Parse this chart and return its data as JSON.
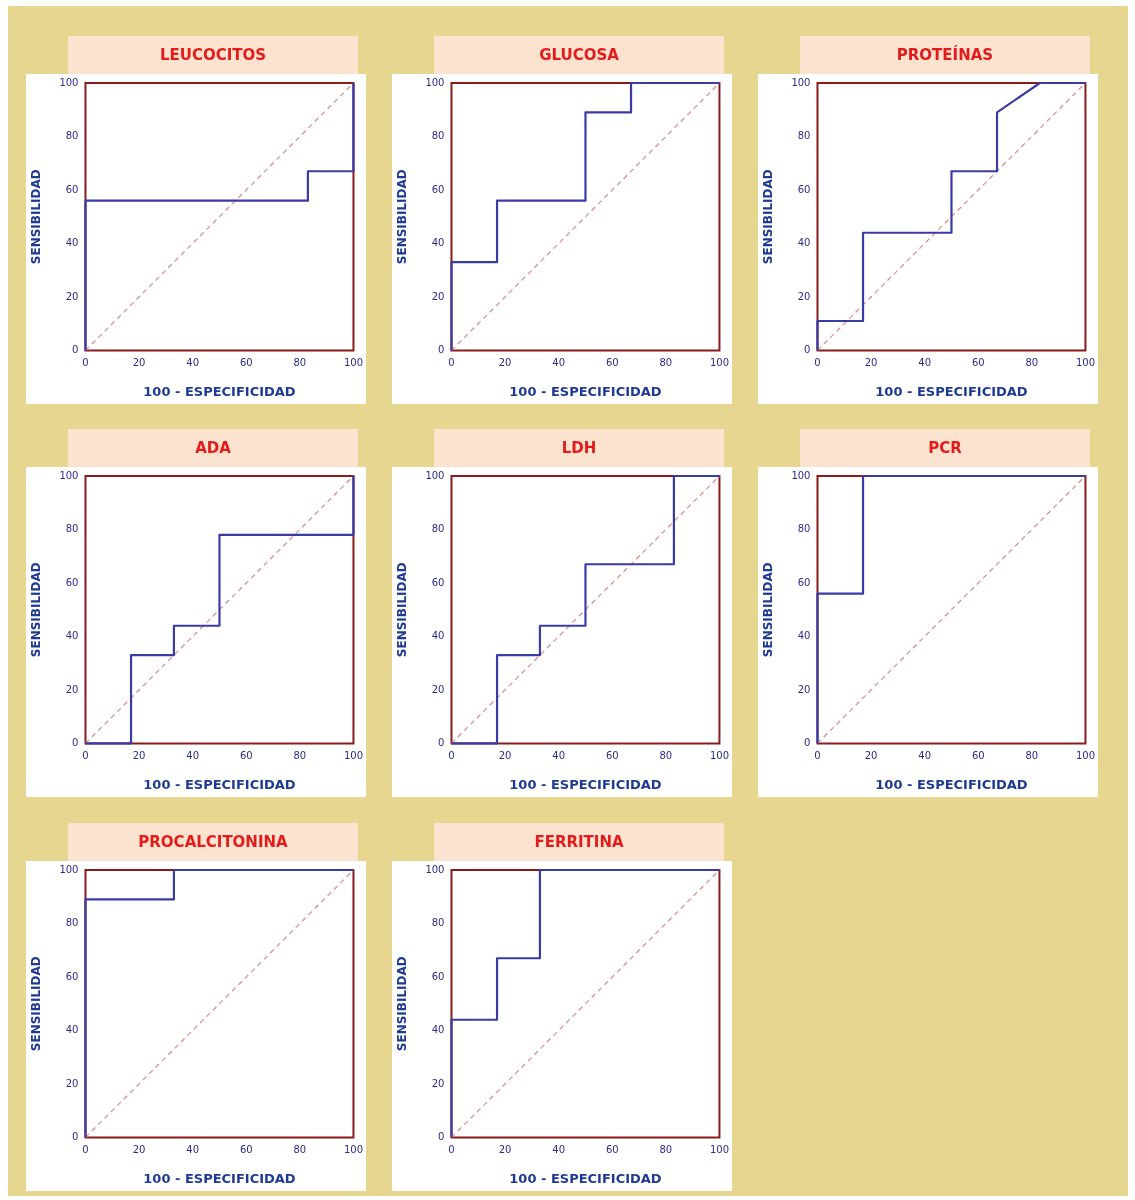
{
  "chart_data": [
    {
      "type": "line",
      "title": "LEUCOCITOS",
      "xlabel": "100 - ESPECIFICIDAD",
      "ylabel": "SENSIBILIDAD",
      "xlim": [
        0,
        100
      ],
      "ylim": [
        0,
        100
      ],
      "xticks": [
        0,
        20,
        40,
        60,
        80,
        100
      ],
      "yticks": [
        0,
        20,
        40,
        60,
        80,
        100
      ],
      "marker": "none",
      "series": [
        {
          "color": "#3b3ba6",
          "line_style": "solid",
          "x": [
            0,
            0,
            83,
            83,
            100,
            100
          ],
          "values": [
            0,
            56,
            56,
            67,
            67,
            100
          ]
        },
        {
          "color": "#d98a8a",
          "line_style": "dashed",
          "x": [
            0,
            100
          ],
          "values": [
            0,
            100
          ]
        }
      ]
    },
    {
      "type": "line",
      "title": "GLUCOSA",
      "xlabel": "100 - ESPECIFICIDAD",
      "ylabel": "SENSIBILIDAD",
      "xlim": [
        0,
        100
      ],
      "ylim": [
        0,
        100
      ],
      "xticks": [
        0,
        20,
        40,
        60,
        80,
        100
      ],
      "yticks": [
        0,
        20,
        40,
        60,
        80,
        100
      ],
      "marker": "none",
      "series": [
        {
          "color": "#3b3ba6",
          "line_style": "solid",
          "x": [
            0,
            0,
            17,
            17,
            50,
            50,
            67,
            67,
            100
          ],
          "values": [
            0,
            33,
            33,
            56,
            56,
            89,
            89,
            100,
            100
          ]
        },
        {
          "color": "#d98a8a",
          "line_style": "dashed",
          "x": [
            0,
            100
          ],
          "values": [
            0,
            100
          ]
        }
      ]
    },
    {
      "type": "line",
      "title": "PROTEÍNAS",
      "xlabel": "100 - ESPECIFICIDAD",
      "ylabel": "SENSIBILIDAD",
      "xlim": [
        0,
        100
      ],
      "ylim": [
        0,
        100
      ],
      "xticks": [
        0,
        20,
        40,
        60,
        80,
        100
      ],
      "yticks": [
        0,
        20,
        40,
        60,
        80,
        100
      ],
      "marker": "none",
      "series": [
        {
          "color": "#3b3ba6",
          "line_style": "solid",
          "x": [
            0,
            0,
            17,
            17,
            50,
            50,
            67,
            67,
            83,
            100
          ],
          "values": [
            0,
            11,
            11,
            44,
            44,
            67,
            67,
            89,
            100,
            100
          ]
        },
        {
          "color": "#d98a8a",
          "line_style": "dashed",
          "x": [
            0,
            100
          ],
          "values": [
            0,
            100
          ]
        }
      ]
    },
    {
      "type": "line",
      "title": "ADA",
      "xlabel": "100 - ESPECIFICIDAD",
      "ylabel": "SENSIBILIDAD",
      "xlim": [
        0,
        100
      ],
      "ylim": [
        0,
        100
      ],
      "xticks": [
        0,
        20,
        40,
        60,
        80,
        100
      ],
      "yticks": [
        0,
        20,
        40,
        60,
        80,
        100
      ],
      "marker": "none",
      "series": [
        {
          "color": "#3b3ba6",
          "line_style": "solid",
          "x": [
            0,
            17,
            17,
            33,
            33,
            50,
            50,
            100,
            100
          ],
          "values": [
            0,
            0,
            33,
            33,
            44,
            44,
            78,
            78,
            100
          ]
        },
        {
          "color": "#d98a8a",
          "line_style": "dashed",
          "x": [
            0,
            100
          ],
          "values": [
            0,
            100
          ]
        }
      ]
    },
    {
      "type": "line",
      "title": "LDH",
      "xlabel": "100 - ESPECIFICIDAD",
      "ylabel": "SENSIBILIDAD",
      "xlim": [
        0,
        100
      ],
      "ylim": [
        0,
        100
      ],
      "xticks": [
        0,
        20,
        40,
        60,
        80,
        100
      ],
      "yticks": [
        0,
        20,
        40,
        60,
        80,
        100
      ],
      "marker": "none",
      "series": [
        {
          "color": "#3b3ba6",
          "line_style": "solid",
          "x": [
            0,
            17,
            17,
            33,
            33,
            50,
            50,
            83,
            83,
            100
          ],
          "values": [
            0,
            0,
            33,
            33,
            44,
            44,
            67,
            67,
            100,
            100
          ]
        },
        {
          "color": "#d98a8a",
          "line_style": "dashed",
          "x": [
            0,
            100
          ],
          "values": [
            0,
            100
          ]
        }
      ]
    },
    {
      "type": "line",
      "title": "PCR",
      "xlabel": "100 - ESPECIFICIDAD",
      "ylabel": "SENSIBILIDAD",
      "xlim": [
        0,
        100
      ],
      "ylim": [
        0,
        100
      ],
      "xticks": [
        0,
        20,
        40,
        60,
        80,
        100
      ],
      "yticks": [
        0,
        20,
        40,
        60,
        80,
        100
      ],
      "marker": "none",
      "series": [
        {
          "color": "#3b3ba6",
          "line_style": "solid",
          "x": [
            0,
            0,
            17,
            17,
            100
          ],
          "values": [
            0,
            56,
            56,
            100,
            100
          ]
        },
        {
          "color": "#d98a8a",
          "line_style": "dashed",
          "x": [
            0,
            100
          ],
          "values": [
            0,
            100
          ]
        }
      ]
    },
    {
      "type": "line",
      "title": "PROCALCITONINA",
      "xlabel": "100 - ESPECIFICIDAD",
      "ylabel": "SENSIBILIDAD",
      "xlim": [
        0,
        100
      ],
      "ylim": [
        0,
        100
      ],
      "xticks": [
        0,
        20,
        40,
        60,
        80,
        100
      ],
      "yticks": [
        0,
        20,
        40,
        60,
        80,
        100
      ],
      "marker": "none",
      "series": [
        {
          "color": "#3b3ba6",
          "line_style": "solid",
          "x": [
            0,
            0,
            33,
            33,
            100
          ],
          "values": [
            0,
            89,
            89,
            100,
            100
          ]
        },
        {
          "color": "#d98a8a",
          "line_style": "dashed",
          "x": [
            0,
            100
          ],
          "values": [
            0,
            100
          ]
        }
      ]
    },
    {
      "type": "line",
      "title": "FERRITINA",
      "xlabel": "100 - ESPECIFICIDAD",
      "ylabel": "SENSIBILIDAD",
      "xlim": [
        0,
        100
      ],
      "ylim": [
        0,
        100
      ],
      "xticks": [
        0,
        20,
        40,
        60,
        80,
        100
      ],
      "yticks": [
        0,
        20,
        40,
        60,
        80,
        100
      ],
      "marker": "none",
      "series": [
        {
          "color": "#3b3ba6",
          "line_style": "solid",
          "x": [
            0,
            0,
            17,
            17,
            33,
            33,
            100
          ],
          "values": [
            0,
            44,
            44,
            67,
            67,
            100,
            100
          ]
        },
        {
          "color": "#d98a8a",
          "line_style": "dashed",
          "x": [
            0,
            100
          ],
          "values": [
            0,
            100
          ]
        }
      ]
    }
  ]
}
